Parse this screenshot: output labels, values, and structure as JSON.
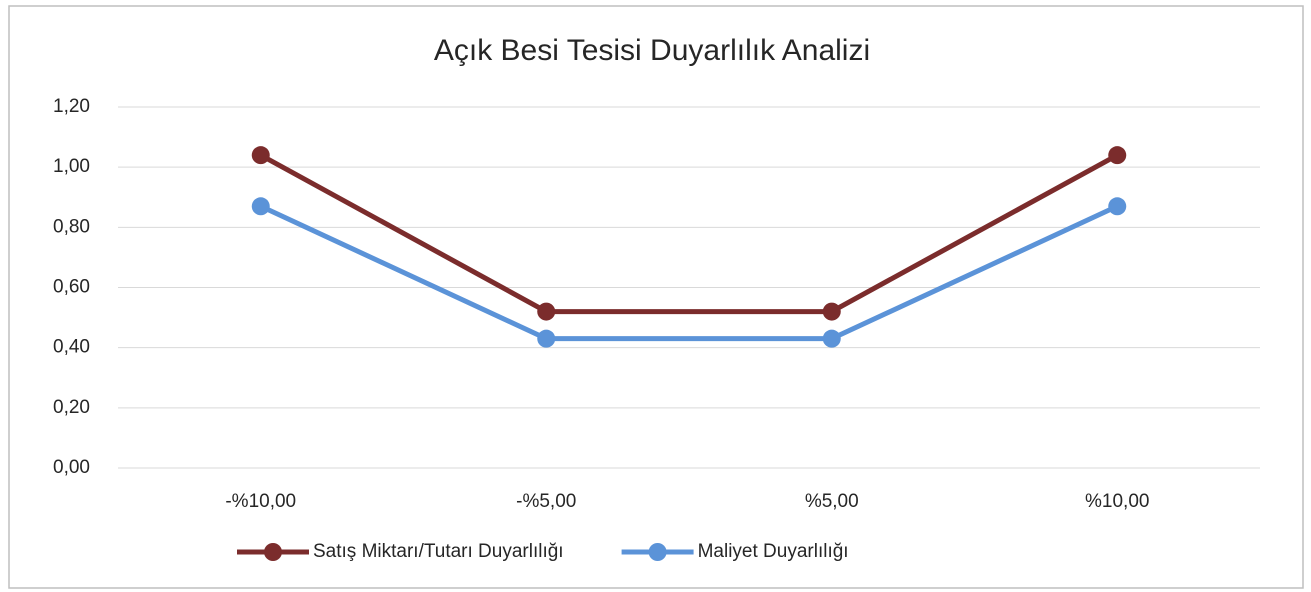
{
  "chart_data": {
    "type": "line",
    "title": "Açık Besi Tesisi Duyarlılık Analizi",
    "categories": [
      "-%10,00",
      "-%5,00",
      "%5,00",
      "%10,00"
    ],
    "series": [
      {
        "name": "Satış Miktarı/Tutarı Duyarlılığı",
        "color": "#7b2c2c",
        "values": [
          1.04,
          0.52,
          0.52,
          1.04
        ]
      },
      {
        "name": "Maliyet Duyarlılığı",
        "color": "#5b93d8",
        "values": [
          0.87,
          0.43,
          0.43,
          0.87
        ]
      }
    ],
    "ylim": [
      0,
      1.2
    ],
    "yticks": [
      {
        "value": 0,
        "label": "0,00"
      },
      {
        "value": 0.2,
        "label": "0,20"
      },
      {
        "value": 0.4,
        "label": "0,40"
      },
      {
        "value": 0.6,
        "label": "0,60"
      },
      {
        "value": 0.8,
        "label": "0,80"
      },
      {
        "value": 1.0,
        "label": "1,00"
      },
      {
        "value": 1.2,
        "label": "1,20"
      }
    ],
    "grid": true,
    "legend": "bottom"
  }
}
